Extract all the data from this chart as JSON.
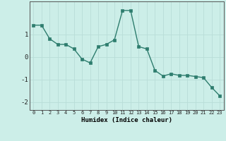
{
  "x": [
    0,
    1,
    2,
    3,
    4,
    5,
    6,
    7,
    8,
    9,
    10,
    11,
    12,
    13,
    14,
    15,
    16,
    17,
    18,
    19,
    20,
    21,
    22,
    23
  ],
  "y": [
    1.4,
    1.4,
    0.8,
    0.55,
    0.55,
    0.35,
    -0.1,
    -0.27,
    0.45,
    0.55,
    0.75,
    2.05,
    2.05,
    0.45,
    0.35,
    -0.6,
    -0.85,
    -0.75,
    -0.82,
    -0.82,
    -0.87,
    -0.92,
    -1.35,
    -1.72
  ],
  "xlabel": "Humidex (Indice chaleur)",
  "bg_color": "#cceee8",
  "line_color": "#2e7d6e",
  "marker_color": "#2e7d6e",
  "grid_color": "#b8ddd8",
  "yticks": [
    -2,
    -1,
    0,
    1
  ],
  "ylim": [
    -2.35,
    2.45
  ],
  "xlim": [
    -0.5,
    23.5
  ],
  "xlabel_fontsize": 6.5,
  "xtick_fontsize": 5.0,
  "ytick_fontsize": 6.5
}
